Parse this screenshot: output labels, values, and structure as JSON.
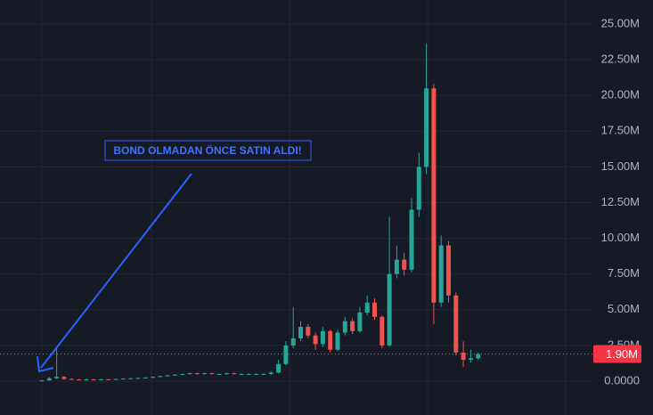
{
  "chart_data": {
    "type": "candlestick",
    "annotation": "BOND OLMADAN ÖNCE SATIN ALDI!",
    "up_color": "#26a69a",
    "down_color": "#ef5350",
    "ylim": [
      -2.37,
      26.68
    ],
    "yticks": [
      {
        "value": 0,
        "label": "0.0000"
      },
      {
        "value": 2.5,
        "label": "2.50M"
      },
      {
        "value": 5,
        "label": "5.00M"
      },
      {
        "value": 7.5,
        "label": "7.50M"
      },
      {
        "value": 10,
        "label": "10.00M"
      },
      {
        "value": 12.5,
        "label": "12.50M"
      },
      {
        "value": 15,
        "label": "15.00M"
      },
      {
        "value": 17.5,
        "label": "17.50M"
      },
      {
        "value": 20,
        "label": "20.00M"
      },
      {
        "value": 22.5,
        "label": "22.50M"
      },
      {
        "value": 25,
        "label": "25.00M"
      }
    ],
    "grid": true,
    "last_price": {
      "value": 1.9,
      "label": "1.90M"
    },
    "open": [
      0.02,
      0.05,
      0.2,
      0.3,
      0.15,
      0.12,
      0.1,
      0.12,
      0.1,
      0.13,
      0.12,
      0.15,
      0.18,
      0.2,
      0.22,
      0.25,
      0.3,
      0.35,
      0.4,
      0.45,
      0.5,
      0.55,
      0.5,
      0.55,
      0.5,
      0.5,
      0.55,
      0.5,
      0.5,
      0.5,
      0.5,
      0.5,
      0.6,
      1.2,
      2.5,
      3.0,
      3.8,
      3.2,
      2.6,
      3.5,
      2.2,
      3.4,
      4.2,
      3.5,
      4.8,
      5.5,
      4.5,
      2.5,
      7.5,
      8.5,
      7.8,
      12,
      15,
      20.5,
      5.5,
      9.5,
      6,
      2,
      1.5,
      1.6
    ],
    "high": [
      0.08,
      0.3,
      2.4,
      0.35,
      0.2,
      0.15,
      0.16,
      0.15,
      0.16,
      0.16,
      0.18,
      0.2,
      0.23,
      0.25,
      0.28,
      0.33,
      0.38,
      0.43,
      0.48,
      0.53,
      0.6,
      0.6,
      0.6,
      0.6,
      0.55,
      0.6,
      0.6,
      0.55,
      0.55,
      0.55,
      0.55,
      0.7,
      1.5,
      2.8,
      5.2,
      4.2,
      4.0,
      3.4,
      3.8,
      3.6,
      3.6,
      4.5,
      4.4,
      5.2,
      6.0,
      5.8,
      4.6,
      11.5,
      9.5,
      9.0,
      12.8,
      16,
      23.6,
      20.8,
      10.2,
      9.8,
      6.2,
      2.8,
      2.2,
      2.0
    ],
    "low": [
      0,
      0.03,
      0.15,
      0.1,
      0.1,
      0.08,
      0.08,
      0.08,
      0.08,
      0.1,
      0.1,
      0.13,
      0.16,
      0.18,
      0.2,
      0.22,
      0.28,
      0.33,
      0.38,
      0.43,
      0.45,
      0.45,
      0.45,
      0.45,
      0.45,
      0.45,
      0.45,
      0.45,
      0.45,
      0.45,
      0.45,
      0.45,
      0.55,
      1.1,
      2.3,
      2.8,
      3.0,
      2.2,
      2.4,
      2.0,
      2.1,
      3.2,
      3.3,
      3.4,
      4.6,
      4.3,
      2.3,
      2.4,
      7.2,
      7.4,
      7.6,
      11.5,
      14.5,
      4.0,
      5.2,
      5.5,
      1.8,
      1.0,
      1.3,
      1.5
    ],
    "close": [
      0.05,
      0.2,
      0.3,
      0.15,
      0.12,
      0.1,
      0.12,
      0.1,
      0.13,
      0.12,
      0.15,
      0.18,
      0.2,
      0.22,
      0.25,
      0.3,
      0.35,
      0.4,
      0.45,
      0.5,
      0.55,
      0.5,
      0.55,
      0.5,
      0.5,
      0.55,
      0.5,
      0.5,
      0.5,
      0.5,
      0.5,
      0.6,
      1.2,
      2.5,
      3.0,
      3.8,
      3.2,
      2.6,
      3.5,
      2.2,
      3.4,
      4.2,
      3.5,
      4.8,
      5.5,
      4.5,
      2.5,
      7.5,
      8.5,
      7.8,
      12,
      15,
      20.5,
      5.5,
      9.5,
      6,
      2,
      1.5,
      1.6,
      1.9
    ]
  }
}
